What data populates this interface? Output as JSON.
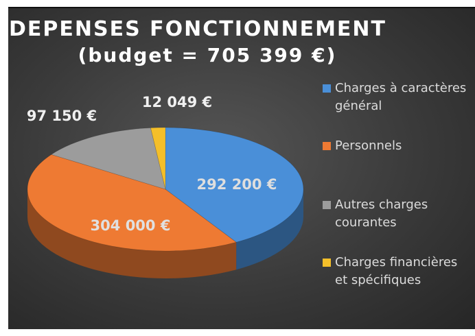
{
  "chart_data": {
    "type": "pie",
    "title": "DEPENSES FONCTIONNEMENT",
    "subtitle": "(budget = 705 399 €)",
    "categories": [
      "Charges à caractères général",
      "Personnels",
      "Autres charges courantes",
      "Charges financières et spécifiques"
    ],
    "values": [
      292200,
      304000,
      97150,
      12049
    ],
    "value_labels": [
      "292 200 €",
      "304 000 €",
      "97 150 €",
      "12 049 €"
    ],
    "colors": [
      "#4a8fd8",
      "#ee7a33",
      "#9c9c9c",
      "#f4bf2a"
    ],
    "legend": "right"
  }
}
